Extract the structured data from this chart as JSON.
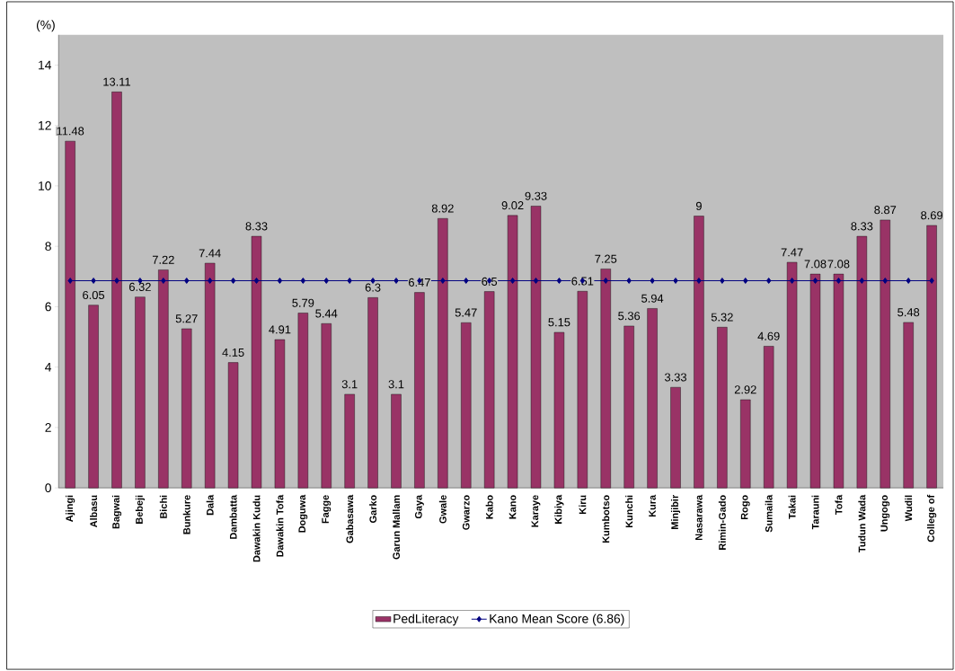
{
  "chart_data": {
    "type": "bar",
    "ylabel": "(%)",
    "categories": [
      "Ajingi",
      "Albasu",
      "Bagwai",
      "Bebeji",
      "Bichi",
      "Bunkure",
      "Dala",
      "Dambatta",
      "Dawakin Kudu",
      "Dawakin Tofa",
      "Doguwa",
      "Fagge",
      "Gabasawa",
      "Garko",
      "Garun Mallam",
      "Gaya",
      "Gwale",
      "Gwarzo",
      "Kabo",
      "Kano",
      "Karaye",
      "Kibiya",
      "Kiru",
      "Kumbotso",
      "Kunchi",
      "Kura",
      "Minjibir",
      "Nasarawa",
      "Rimin-Gado",
      "Rogo",
      "Sumaila",
      "Takai",
      "Tarauni",
      "Tofa",
      "Tudun Wada",
      "Ungogo",
      "Wudil",
      "College of"
    ],
    "series": [
      {
        "name": "PedLiteracy",
        "color": "#993366",
        "values": [
          11.48,
          6.05,
          13.11,
          6.32,
          7.22,
          5.27,
          7.44,
          4.15,
          8.33,
          4.91,
          5.79,
          5.44,
          3.1,
          6.3,
          3.1,
          6.47,
          8.92,
          5.47,
          6.5,
          9.02,
          9.33,
          5.15,
          6.51,
          7.25,
          5.36,
          5.94,
          3.33,
          9,
          5.32,
          2.92,
          4.69,
          7.47,
          7.08,
          7.08,
          8.33,
          8.87,
          5.48,
          8.69
        ],
        "value_labels": [
          "11.48",
          "6.05",
          "13.11",
          "6.32",
          "7.22",
          "5.27",
          "7.44",
          "4.15",
          "8.33",
          "4.91",
          "5.79",
          "5.44",
          "3.1",
          "6.3",
          "3.1",
          "6.47",
          "8.92",
          "5.47",
          "6.5",
          "9.02",
          "9.33",
          "5.15",
          "6.51",
          "7.25",
          "5.36",
          "5.94",
          "3.33",
          "9",
          "5.32",
          "2.92",
          "4.69",
          "7.47",
          "7.08",
          "7.08",
          "8.33",
          "8.87",
          "5.48",
          "8.69"
        ]
      },
      {
        "name": "Kano Mean Score (6.86)",
        "type": "line",
        "color": "#000080",
        "marker": "diamond",
        "values": [
          6.86,
          6.86,
          6.86,
          6.86,
          6.86,
          6.86,
          6.86,
          6.86,
          6.86,
          6.86,
          6.86,
          6.86,
          6.86,
          6.86,
          6.86,
          6.86,
          6.86,
          6.86,
          6.86,
          6.86,
          6.86,
          6.86,
          6.86,
          6.86,
          6.86,
          6.86,
          6.86,
          6.86,
          6.86,
          6.86,
          6.86,
          6.86,
          6.86,
          6.86,
          6.86,
          6.86,
          6.86,
          6.86
        ]
      }
    ],
    "ylim": [
      0,
      15
    ],
    "yticks": [
      0,
      2,
      4,
      6,
      8,
      10,
      12,
      14
    ],
    "legend": "bottom"
  }
}
